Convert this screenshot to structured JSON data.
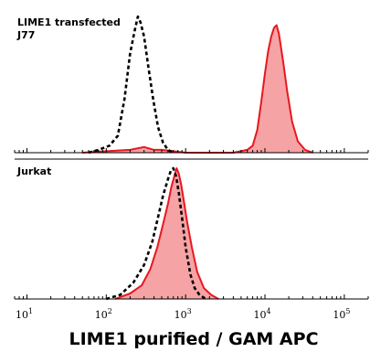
{
  "chart_data": {
    "type": "area",
    "title": "",
    "xlabel": "LIME1 purified / GAM APC",
    "ylabel": "",
    "x_scale": "log",
    "xlim": [
      7,
      200000
    ],
    "x_ticks": [
      {
        "base": "10",
        "exp": "1",
        "value": 10
      },
      {
        "base": "10",
        "exp": "2",
        "value": 100
      },
      {
        "base": "10",
        "exp": "3",
        "value": 1000
      },
      {
        "base": "10",
        "exp": "4",
        "value": 10000
      },
      {
        "base": "10",
        "exp": "5",
        "value": 100000
      }
    ],
    "grid": false,
    "legend": "none",
    "colors": {
      "stained": "#e8171f",
      "stained_fill": "#f6a3a5",
      "control": "#000000"
    },
    "panels": [
      {
        "label_lines": [
          "LIME1 transfected",
          "J77"
        ],
        "ylim": [
          0,
          100
        ],
        "series": [
          {
            "style": "dashed-outline",
            "x": [
              60,
              80,
              110,
              140,
              170,
              200,
              230,
              250,
              270,
              300,
              340,
              390,
              450,
              520,
              600,
              700
            ],
            "y": [
              0,
              2,
              5,
              12,
              38,
              70,
              87,
              96,
              92,
              82,
              60,
              38,
              18,
              7,
              2,
              0
            ]
          },
          {
            "style": "filled",
            "x": [
              50,
              100,
              200,
              300,
              400,
              500,
              700,
              1000,
              2000,
              4000,
              6000,
              7000,
              8000,
              9000,
              10000,
              11000,
              12000,
              13000,
              14000,
              15000,
              17000,
              19000,
              22000,
              26000,
              32000,
              40000
            ],
            "y": [
              0,
              1,
              2,
              4,
              2,
              2,
              1,
              0,
              0,
              0,
              2,
              5,
              16,
              36,
              56,
              72,
              82,
              88,
              90,
              84,
              64,
              44,
              22,
              8,
              2,
              0
            ]
          }
        ]
      },
      {
        "label_lines": [
          "Jurkat"
        ],
        "ylim": [
          0,
          100
        ],
        "series": [
          {
            "style": "dashed-outline",
            "x": [
              100,
              150,
              220,
              300,
              380,
              450,
              520,
              600,
              650,
              700,
              760,
              820,
              900,
              1000,
              1150,
              1300,
              1500,
              1800
            ],
            "y": [
              0,
              3,
              12,
              25,
              42,
              60,
              76,
              88,
              94,
              96,
              90,
              78,
              60,
              38,
              18,
              8,
              3,
              0
            ]
          },
          {
            "style": "filled",
            "x": [
              130,
              200,
              280,
              360,
              440,
              520,
              600,
              660,
              720,
              770,
              820,
              880,
              950,
              1050,
              1200,
              1400,
              1700,
              2100,
              2600
            ],
            "y": [
              0,
              4,
              10,
              22,
              38,
              55,
              70,
              82,
              90,
              96,
              92,
              84,
              72,
              56,
              38,
              20,
              8,
              3,
              0
            ]
          }
        ]
      }
    ]
  }
}
